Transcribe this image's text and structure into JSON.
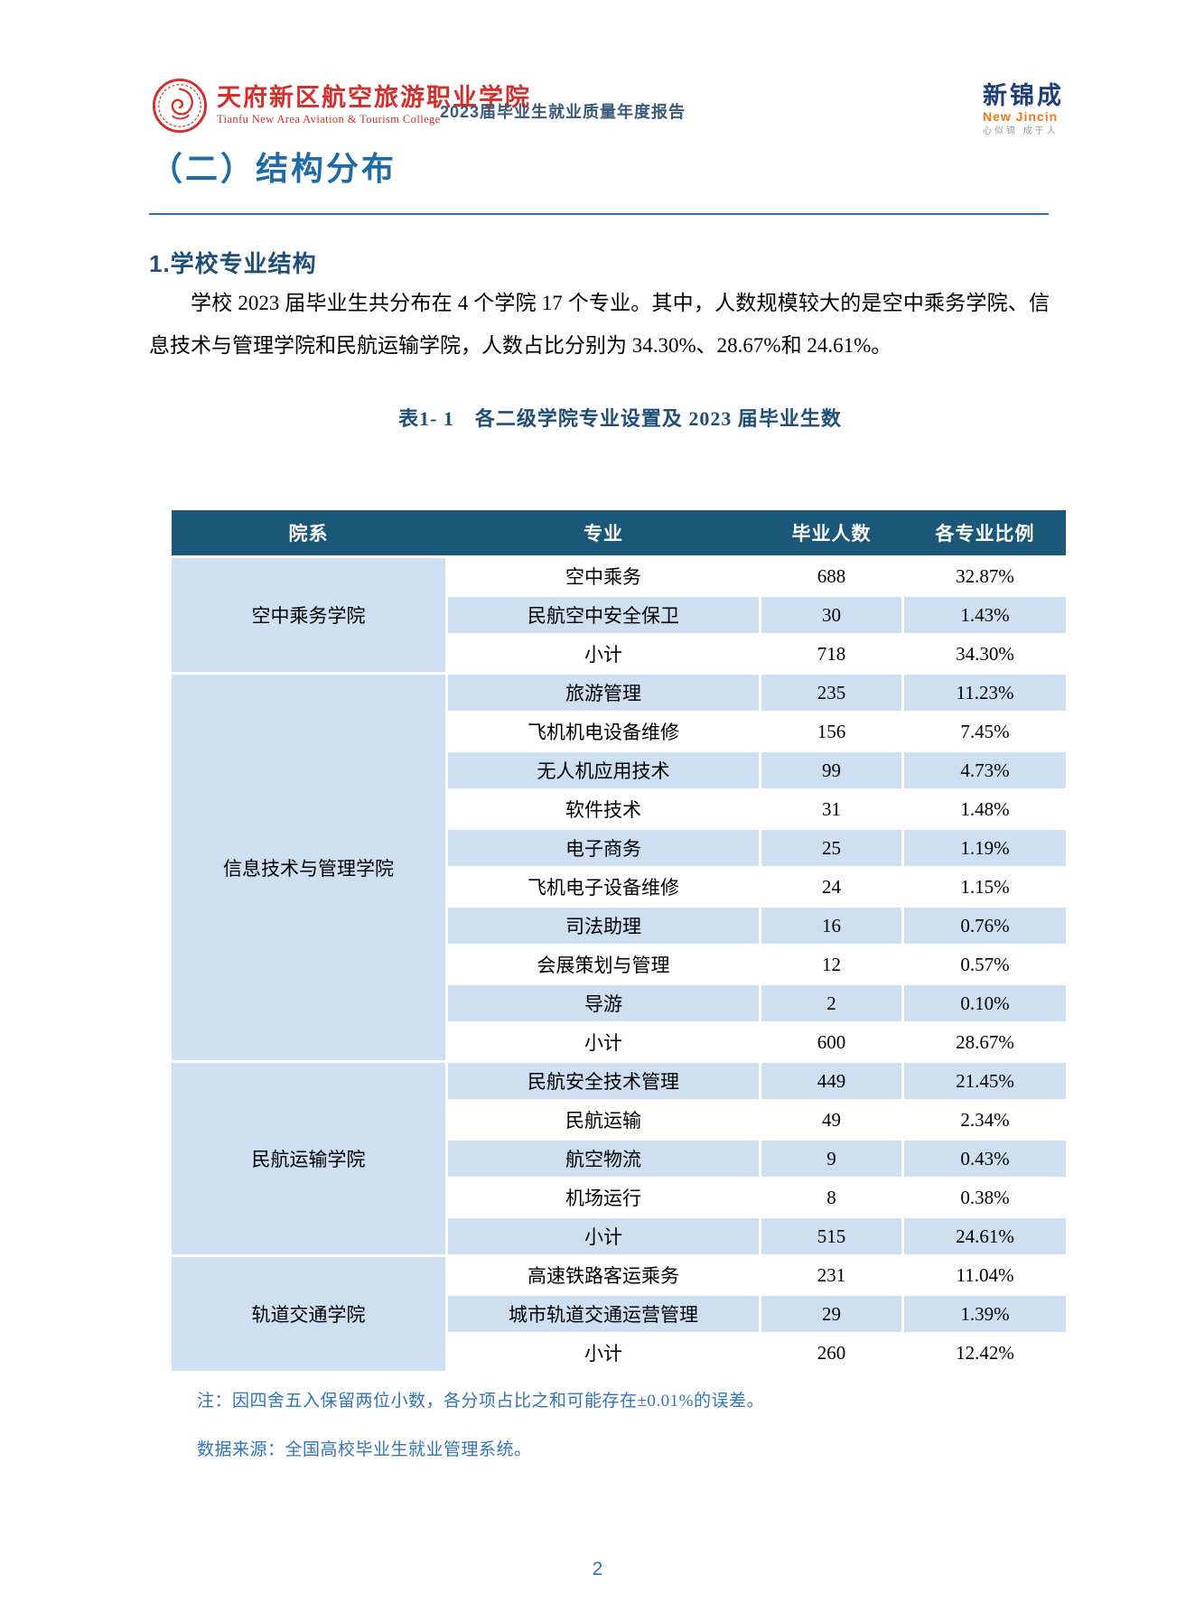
{
  "header": {
    "school_name": "天府新区航空旅游职业学院",
    "school_name_en": "Tianfu New Area Aviation & Tourism College",
    "report_title": "2023届毕业生就业质量年度报告",
    "brand": {
      "name": "新锦成",
      "name_en": "New Jincin",
      "tagline": "心似锦 成于人"
    }
  },
  "section": {
    "title": "（二）结构分布",
    "subsection": "1.学校专业结构",
    "paragraph": "学校 2023 届毕业生共分布在 4 个学院 17 个专业。其中，人数规模较大的是空中乘务学院、信息技术与管理学院和民航运输学院，人数占比分别为 34.30%、28.67%和 24.61%。"
  },
  "table": {
    "caption": "表1- 1　各二级学院专业设置及 2023 届毕业生数",
    "columns": [
      "院系",
      "专业",
      "毕业人数",
      "各专业比例"
    ],
    "groups": [
      {
        "college": "空中乘务学院",
        "rows": [
          [
            "空中乘务",
            "688",
            "32.87%"
          ],
          [
            "民航空中安全保卫",
            "30",
            "1.43%"
          ],
          [
            "小计",
            "718",
            "34.30%"
          ]
        ]
      },
      {
        "college": "信息技术与管理学院",
        "rows": [
          [
            "旅游管理",
            "235",
            "11.23%"
          ],
          [
            "飞机机电设备维修",
            "156",
            "7.45%"
          ],
          [
            "无人机应用技术",
            "99",
            "4.73%"
          ],
          [
            "软件技术",
            "31",
            "1.48%"
          ],
          [
            "电子商务",
            "25",
            "1.19%"
          ],
          [
            "飞机电子设备维修",
            "24",
            "1.15%"
          ],
          [
            "司法助理",
            "16",
            "0.76%"
          ],
          [
            "会展策划与管理",
            "12",
            "0.57%"
          ],
          [
            "导游",
            "2",
            "0.10%"
          ],
          [
            "小计",
            "600",
            "28.67%"
          ]
        ]
      },
      {
        "college": "民航运输学院",
        "rows": [
          [
            "民航安全技术管理",
            "449",
            "21.45%"
          ],
          [
            "民航运输",
            "49",
            "2.34%"
          ],
          [
            "航空物流",
            "9",
            "0.43%"
          ],
          [
            "机场运行",
            "8",
            "0.38%"
          ],
          [
            "小计",
            "515",
            "24.61%"
          ]
        ]
      },
      {
        "college": "轨道交通学院",
        "rows": [
          [
            "高速铁路客运乘务",
            "231",
            "11.04%"
          ],
          [
            "城市轨道交通运营管理",
            "29",
            "1.39%"
          ],
          [
            "小计",
            "260",
            "12.42%"
          ]
        ]
      }
    ],
    "note": "注：因四舍五入保留两位小数，各分项占比之和可能存在±0.01%的误差。",
    "source": "数据来源：全国高校毕业生就业管理系统。"
  },
  "footer": {
    "page_number": "2"
  },
  "colors": {
    "table_header_bg": "#1b5778",
    "table_row_blue": "#cddff1",
    "section_title_blue": "#1e6ba8",
    "heading_navy": "#1f4e79",
    "rule_blue": "#2e74b5",
    "note_blue": "#3274b8",
    "school_red": "#d3302c",
    "brand_navy": "#1e3e7c",
    "brand_orange": "#f07818"
  }
}
